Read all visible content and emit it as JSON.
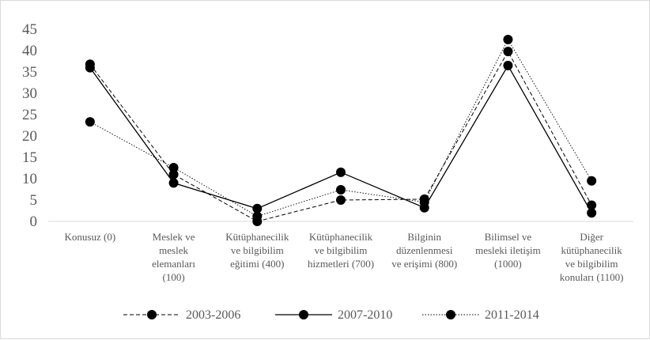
{
  "chart_data": {
    "type": "line",
    "title": "",
    "xlabel": "",
    "ylabel": "",
    "ylim": [
      0,
      45
    ],
    "yticks": [
      0,
      5,
      10,
      15,
      20,
      25,
      30,
      35,
      40,
      45
    ],
    "grid": false,
    "legend_position": "bottom",
    "categories": [
      [
        "Konusuz (0)"
      ],
      [
        "Meslek ve",
        "meslek",
        "elemanları",
        "(100)"
      ],
      [
        "Kütüphanecilik",
        "ve bilgibilim",
        "eğitimi (400)"
      ],
      [
        "Kütüphanecilik",
        "ve bilgibilim",
        "hizmetleri (700)"
      ],
      [
        "Bilginin",
        "düzenlenmesi",
        "ve erişimi (800)"
      ],
      [
        "Bilimsel ve",
        "mesleki iletişim",
        "(1000)"
      ],
      [
        "Diğer",
        "kütüphanecilik",
        "ve bilgibilim",
        "konuları (1100)"
      ]
    ],
    "series": [
      {
        "name": "2003-2006",
        "style": "dashed",
        "values": [
          36.8,
          11.0,
          0.0,
          5.0,
          5.2,
          39.8,
          3.8
        ]
      },
      {
        "name": "2007-2010",
        "style": "solid",
        "values": [
          36.0,
          9.0,
          3.0,
          11.5,
          3.2,
          36.5,
          2.0
        ]
      },
      {
        "name": "2011-2014",
        "style": "dotted",
        "values": [
          23.3,
          12.6,
          1.2,
          7.4,
          4.5,
          42.6,
          9.5
        ]
      }
    ],
    "colors": {
      "line": "#000000",
      "axis_text": "#595959",
      "axis_line": "#d9d9d9"
    }
  }
}
